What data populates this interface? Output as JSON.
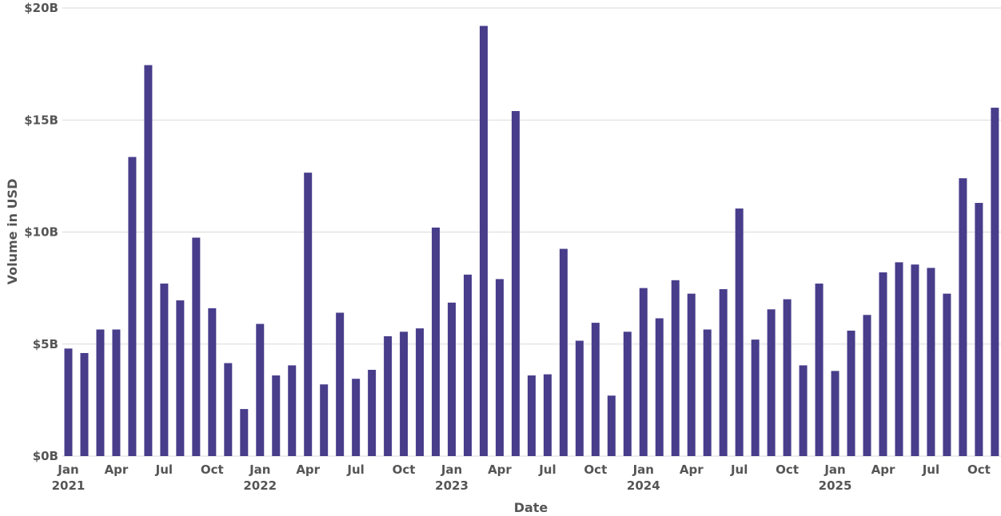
{
  "chart_data": {
    "type": "bar",
    "title": "",
    "xlabel": "Date",
    "ylabel": "Volume in USD",
    "ylim": [
      0,
      20
    ],
    "y_unit": "billion USD",
    "grid": true,
    "bar_color": "#483d8b",
    "y_ticks": [
      {
        "value": 0,
        "label": "$0B"
      },
      {
        "value": 5,
        "label": "$5B"
      },
      {
        "value": 10,
        "label": "$10B"
      },
      {
        "value": 15,
        "label": "$15B"
      },
      {
        "value": 20,
        "label": "$20B"
      }
    ],
    "x_ticks": [
      {
        "date": "2021-01",
        "label": "Jan",
        "sublabel": "2021"
      },
      {
        "date": "2021-04",
        "label": "Apr",
        "sublabel": ""
      },
      {
        "date": "2021-07",
        "label": "Jul",
        "sublabel": ""
      },
      {
        "date": "2021-10",
        "label": "Oct",
        "sublabel": ""
      },
      {
        "date": "2022-01",
        "label": "Jan",
        "sublabel": "2022"
      },
      {
        "date": "2022-04",
        "label": "Apr",
        "sublabel": ""
      },
      {
        "date": "2022-07",
        "label": "Jul",
        "sublabel": ""
      },
      {
        "date": "2022-10",
        "label": "Oct",
        "sublabel": ""
      },
      {
        "date": "2023-01",
        "label": "Jan",
        "sublabel": "2023"
      },
      {
        "date": "2023-04",
        "label": "Apr",
        "sublabel": ""
      },
      {
        "date": "2023-07",
        "label": "Jul",
        "sublabel": ""
      },
      {
        "date": "2023-10",
        "label": "Oct",
        "sublabel": ""
      },
      {
        "date": "2024-01",
        "label": "Jan",
        "sublabel": "2024"
      },
      {
        "date": "2024-04",
        "label": "Apr",
        "sublabel": ""
      },
      {
        "date": "2024-07",
        "label": "Jul",
        "sublabel": ""
      },
      {
        "date": "2024-10",
        "label": "Oct",
        "sublabel": ""
      },
      {
        "date": "2025-01",
        "label": "Jan",
        "sublabel": "2025"
      },
      {
        "date": "2025-04",
        "label": "Apr",
        "sublabel": ""
      },
      {
        "date": "2025-07",
        "label": "Jul",
        "sublabel": ""
      },
      {
        "date": "2025-10",
        "label": "Oct",
        "sublabel": ""
      }
    ],
    "x": [
      "2021-01",
      "2021-02",
      "2021-03",
      "2021-04",
      "2021-05",
      "2021-06",
      "2021-07",
      "2021-08",
      "2021-09",
      "2021-10",
      "2021-11",
      "2021-12",
      "2022-01",
      "2022-02",
      "2022-03",
      "2022-04",
      "2022-05",
      "2022-06",
      "2022-07",
      "2022-08",
      "2022-09",
      "2022-10",
      "2022-11",
      "2022-12",
      "2023-01",
      "2023-02",
      "2023-03",
      "2023-04",
      "2023-05",
      "2023-06",
      "2023-07",
      "2023-08",
      "2023-09",
      "2023-10",
      "2023-11",
      "2023-12",
      "2024-01",
      "2024-02",
      "2024-03",
      "2024-04",
      "2024-05",
      "2024-06",
      "2024-07",
      "2024-08",
      "2024-09",
      "2024-10",
      "2024-11",
      "2024-12",
      "2025-01",
      "2025-02",
      "2025-03",
      "2025-04",
      "2025-05",
      "2025-06",
      "2025-07",
      "2025-08",
      "2025-09",
      "2025-10",
      "2025-11"
    ],
    "values": [
      4.8,
      4.6,
      5.65,
      5.65,
      13.35,
      17.45,
      7.7,
      6.95,
      9.75,
      6.6,
      4.15,
      2.1,
      5.9,
      3.6,
      4.05,
      12.65,
      3.2,
      6.4,
      3.45,
      3.85,
      5.35,
      5.55,
      5.7,
      10.2,
      6.85,
      8.1,
      19.2,
      7.9,
      15.4,
      3.6,
      3.65,
      9.25,
      5.15,
      5.95,
      2.7,
      5.55,
      7.5,
      6.15,
      7.85,
      7.25,
      5.65,
      7.45,
      11.05,
      5.2,
      6.55,
      7.0,
      4.05,
      7.7,
      3.8,
      5.6,
      6.3,
      8.2,
      8.65,
      8.55,
      8.4,
      7.25,
      12.4,
      11.3,
      15.55
    ]
  }
}
